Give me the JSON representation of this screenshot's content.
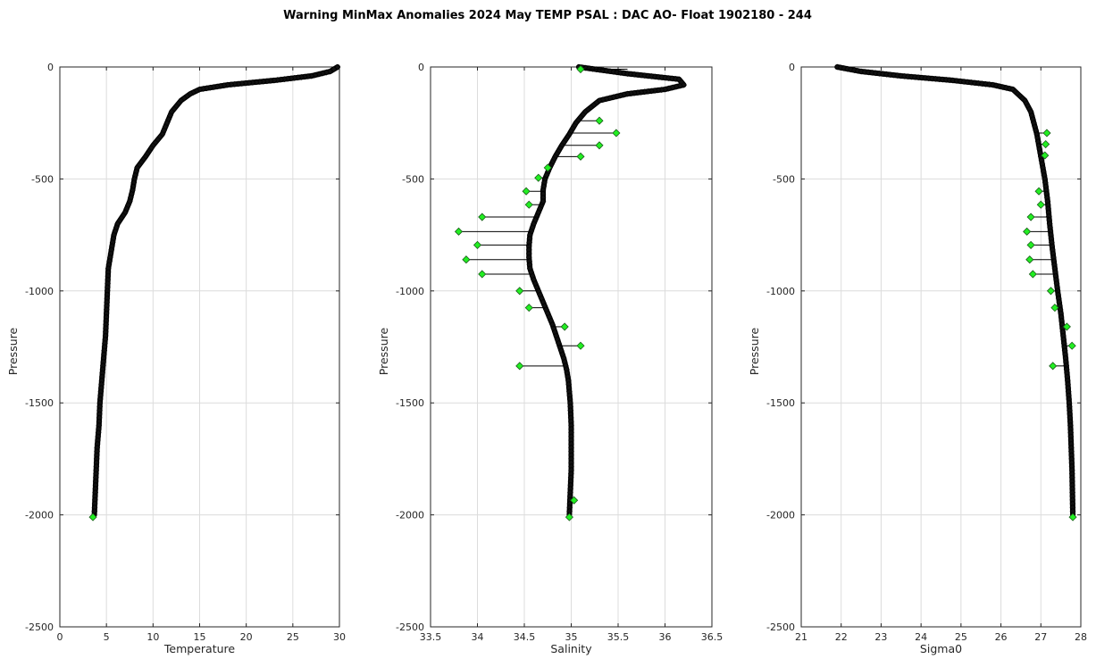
{
  "figure_title": "Warning MinMax Anomalies 2024 May TEMP PSAL :  DAC AO- Float 1902180 - 244",
  "chart_data": [
    {
      "type": "line",
      "xlabel": "Temperature",
      "ylabel": "Pressure",
      "xlim": [
        0,
        30
      ],
      "ylim": [
        -2500,
        0
      ],
      "xticks": [
        0,
        5,
        10,
        15,
        20,
        25,
        30
      ],
      "yticks": [
        0,
        -500,
        -1000,
        -1500,
        -2000,
        -2500
      ],
      "grid": true,
      "colors": {
        "profile": "#000000",
        "marker_fill": "#22ee22",
        "marker_edge": "#1a5c1a"
      },
      "profile": {
        "y": [
          0,
          -20,
          -40,
          -60,
          -80,
          -100,
          -120,
          -150,
          -200,
          -250,
          -300,
          -350,
          -400,
          -450,
          -500,
          -550,
          -600,
          -650,
          -700,
          -750,
          -800,
          -850,
          -900,
          -1000,
          -1100,
          -1200,
          -1300,
          -1400,
          -1500,
          -1600,
          -1700,
          -1800,
          -1900,
          -2000
        ],
        "x": [
          29.8,
          29.0,
          27.0,
          23.0,
          18.0,
          15.0,
          14.0,
          13.0,
          12.0,
          11.5,
          11.0,
          10.0,
          9.2,
          8.3,
          8.0,
          7.8,
          7.5,
          7.0,
          6.2,
          5.8,
          5.6,
          5.4,
          5.2,
          5.1,
          5.0,
          4.9,
          4.7,
          4.5,
          4.3,
          4.2,
          4.0,
          3.9,
          3.8,
          3.7
        ]
      },
      "anomalies": [
        {
          "y": -2010,
          "base": 3.65,
          "x": 3.55
        }
      ]
    },
    {
      "type": "line",
      "xlabel": "Salinity",
      "ylabel": "Pressure",
      "xlim": [
        33.5,
        36.5
      ],
      "ylim": [
        -2500,
        0
      ],
      "xticks": [
        33.5,
        34,
        34.5,
        35,
        35.5,
        36,
        36.5
      ],
      "yticks": [
        0,
        -500,
        -1000,
        -1500,
        -2000,
        -2500
      ],
      "grid": true,
      "colors": {
        "profile": "#000000",
        "marker_fill": "#22ee22",
        "marker_edge": "#1a5c1a"
      },
      "profile": {
        "y": [
          0,
          -30,
          -55,
          -80,
          -100,
          -120,
          -150,
          -200,
          -250,
          -300,
          -350,
          -400,
          -450,
          -500,
          -550,
          -600,
          -650,
          -700,
          -750,
          -800,
          -850,
          -900,
          -950,
          -1000,
          -1050,
          -1100,
          -1150,
          -1200,
          -1250,
          -1300,
          -1350,
          -1400,
          -1500,
          -1600,
          -1700,
          -1800,
          -1900,
          -2000
        ],
        "x": [
          35.08,
          35.6,
          36.15,
          36.2,
          36.0,
          35.6,
          35.3,
          35.15,
          35.05,
          34.98,
          34.9,
          34.83,
          34.77,
          34.72,
          34.7,
          34.7,
          34.65,
          34.6,
          34.56,
          34.55,
          34.55,
          34.56,
          34.6,
          34.65,
          34.7,
          34.75,
          34.8,
          34.84,
          34.88,
          34.92,
          34.95,
          34.97,
          34.99,
          35.0,
          35.0,
          35.0,
          34.99,
          34.98
        ]
      },
      "anomalies": [
        {
          "y": -10,
          "base": 35.6,
          "x": 35.1
        },
        {
          "y": -240,
          "base": 35.1,
          "x": 35.3
        },
        {
          "y": -295,
          "base": 35.0,
          "x": 35.48
        },
        {
          "y": -350,
          "base": 34.92,
          "x": 35.3
        },
        {
          "y": -400,
          "base": 34.85,
          "x": 35.1
        },
        {
          "y": -450,
          "base": 34.8,
          "x": 34.75
        },
        {
          "y": -495,
          "base": 34.75,
          "x": 34.65
        },
        {
          "y": -555,
          "base": 34.72,
          "x": 34.52
        },
        {
          "y": -615,
          "base": 34.7,
          "x": 34.55
        },
        {
          "y": -670,
          "base": 34.66,
          "x": 34.05
        },
        {
          "y": -735,
          "base": 34.57,
          "x": 33.8
        },
        {
          "y": -795,
          "base": 34.55,
          "x": 34.0
        },
        {
          "y": -860,
          "base": 34.55,
          "x": 33.88
        },
        {
          "y": -925,
          "base": 34.57,
          "x": 34.05
        },
        {
          "y": -1000,
          "base": 34.65,
          "x": 34.45
        },
        {
          "y": -1075,
          "base": 34.72,
          "x": 34.55
        },
        {
          "y": -1160,
          "base": 34.8,
          "x": 34.93
        },
        {
          "y": -1245,
          "base": 34.87,
          "x": 35.1
        },
        {
          "y": -1335,
          "base": 34.93,
          "x": 34.45
        },
        {
          "y": -1935,
          "base": 34.99,
          "x": 35.03
        },
        {
          "y": -2010,
          "base": 34.98,
          "x": 34.98
        }
      ]
    },
    {
      "type": "line",
      "xlabel": "Sigma0",
      "ylabel": "Pressure",
      "xlim": [
        21,
        28
      ],
      "ylim": [
        -2500,
        0
      ],
      "xticks": [
        21,
        22,
        23,
        24,
        25,
        26,
        27,
        28
      ],
      "yticks": [
        0,
        -500,
        -1000,
        -1500,
        -2000,
        -2500
      ],
      "grid": true,
      "colors": {
        "profile": "#000000",
        "marker_fill": "#22ee22",
        "marker_edge": "#1a5c1a"
      },
      "profile": {
        "y": [
          0,
          -20,
          -40,
          -60,
          -80,
          -100,
          -150,
          -200,
          -300,
          -400,
          -500,
          -600,
          -700,
          -800,
          -900,
          -1000,
          -1100,
          -1200,
          -1300,
          -1400,
          -1500,
          -1600,
          -1700,
          -1800,
          -1900,
          -2000
        ],
        "x": [
          21.9,
          22.5,
          23.5,
          24.8,
          25.8,
          26.3,
          26.6,
          26.75,
          26.9,
          27.0,
          27.1,
          27.17,
          27.22,
          27.28,
          27.35,
          27.42,
          27.5,
          27.56,
          27.62,
          27.67,
          27.71,
          27.74,
          27.76,
          27.78,
          27.79,
          27.8
        ]
      },
      "anomalies": [
        {
          "y": -295,
          "base": 26.92,
          "x": 27.15
        },
        {
          "y": -345,
          "base": 26.95,
          "x": 27.12
        },
        {
          "y": -395,
          "base": 26.98,
          "x": 27.1
        },
        {
          "y": -555,
          "base": 27.12,
          "x": 26.95
        },
        {
          "y": -615,
          "base": 27.16,
          "x": 27.0
        },
        {
          "y": -670,
          "base": 27.2,
          "x": 26.75
        },
        {
          "y": -735,
          "base": 27.24,
          "x": 26.65
        },
        {
          "y": -795,
          "base": 27.28,
          "x": 26.75
        },
        {
          "y": -860,
          "base": 27.32,
          "x": 26.72
        },
        {
          "y": -925,
          "base": 27.35,
          "x": 26.8
        },
        {
          "y": -1000,
          "base": 27.42,
          "x": 27.25
        },
        {
          "y": -1075,
          "base": 27.48,
          "x": 27.35
        },
        {
          "y": -1160,
          "base": 27.55,
          "x": 27.65
        },
        {
          "y": -1245,
          "base": 27.6,
          "x": 27.78
        },
        {
          "y": -1335,
          "base": 27.64,
          "x": 27.3
        },
        {
          "y": -2010,
          "base": 27.8,
          "x": 27.8
        }
      ]
    }
  ]
}
